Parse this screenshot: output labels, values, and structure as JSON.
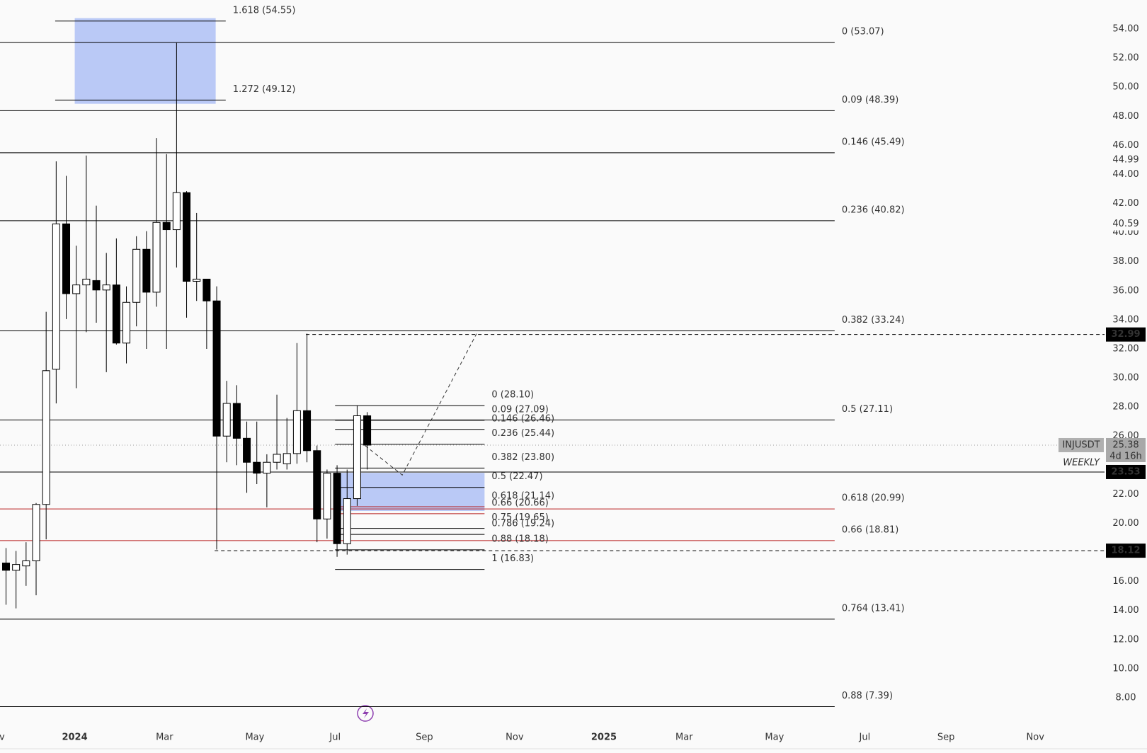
{
  "chart_data": {
    "type": "candlestick",
    "x": [
      0,
      1,
      2,
      3,
      4,
      5,
      6,
      7,
      8,
      9,
      10,
      11,
      12,
      13,
      14,
      15,
      16,
      17,
      18,
      19,
      20,
      21,
      22,
      23,
      24,
      25,
      26,
      27,
      28,
      29,
      30,
      31,
      32,
      33,
      34,
      35,
      36
    ],
    "open": [
      17.27,
      16.77,
      17.07,
      17.42,
      21.3,
      30.6,
      40.6,
      35.8,
      36.4,
      36.7,
      36.05,
      36.4,
      32.4,
      35.2,
      38.85,
      35.9,
      40.7,
      40.2,
      42.75,
      36.65,
      36.8,
      35.3,
      26.0,
      28.25,
      25.85,
      24.2,
      23.45,
      24.2,
      24.1,
      24.8,
      27.75,
      25.0,
      20.3,
      23.45,
      18.6,
      21.7,
      27.4
    ],
    "high": [
      18.3,
      18.1,
      18.7,
      21.4,
      34.55,
      44.9,
      43.9,
      39.1,
      45.3,
      41.85,
      38.6,
      39.6,
      36.3,
      39.75,
      40.1,
      46.5,
      45.4,
      53.05,
      42.85,
      41.35,
      36.8,
      36.3,
      29.8,
      29.5,
      27.0,
      27.0,
      24.75,
      28.85,
      27.25,
      32.4,
      33.05,
      25.35,
      23.7,
      24.0,
      23.7,
      28.1,
      27.65
    ],
    "low": [
      14.4,
      14.15,
      15.7,
      15.05,
      18.9,
      28.25,
      34.05,
      29.3,
      33.15,
      33.8,
      30.4,
      32.3,
      31.0,
      33.55,
      32.0,
      34.9,
      32.0,
      37.6,
      34.15,
      35.3,
      32.0,
      18.2,
      24.2,
      24.0,
      22.1,
      22.7,
      21.1,
      23.7,
      23.7,
      24.1,
      24.2,
      18.7,
      18.95,
      17.7,
      17.85,
      21.2,
      23.7
    ],
    "close": [
      16.77,
      17.17,
      17.42,
      21.3,
      30.5,
      40.6,
      35.8,
      36.4,
      36.8,
      36.05,
      36.4,
      32.4,
      35.2,
      38.85,
      35.9,
      40.7,
      40.2,
      42.75,
      36.65,
      36.8,
      35.3,
      26.0,
      28.25,
      25.85,
      24.2,
      23.45,
      24.2,
      24.75,
      24.8,
      27.75,
      25.0,
      20.3,
      23.45,
      18.6,
      21.7,
      27.4,
      25.38
    ],
    "up_color": "#ffffff",
    "down_color": "#000000",
    "xlim": [
      -0.6,
      109.5
    ],
    "xticks": [
      {
        "value": -0.4,
        "label": "v"
      },
      {
        "value": 6.85,
        "label": "2024"
      },
      {
        "value": 15.8,
        "label": "Mar"
      },
      {
        "value": 24.8,
        "label": "May"
      },
      {
        "value": 32.8,
        "label": "Jul"
      },
      {
        "value": 41.7,
        "label": "Sep"
      },
      {
        "value": 50.7,
        "label": "Nov"
      },
      {
        "value": 59.6,
        "label": "2025"
      },
      {
        "value": 67.6,
        "label": "Mar"
      },
      {
        "value": 76.6,
        "label": "May"
      },
      {
        "value": 85.6,
        "label": "Jul"
      },
      {
        "value": 93.7,
        "label": "Sep"
      },
      {
        "value": 102.6,
        "label": "Nov"
      }
    ],
    "ylim": [
      6.1,
      56
    ],
    "yticks": [
      {
        "value": 54,
        "label": "54.00"
      },
      {
        "value": 52,
        "label": "52.00"
      },
      {
        "value": 50,
        "label": "50.00"
      },
      {
        "value": 48,
        "label": "48.00"
      },
      {
        "value": 46,
        "label": "46.00"
      },
      {
        "value": 44,
        "label": "44.00"
      },
      {
        "value": 42,
        "label": "42.00"
      },
      {
        "value": 40,
        "label": "40.00"
      },
      {
        "value": 38,
        "label": "38.00"
      },
      {
        "value": 36,
        "label": "36.00"
      },
      {
        "value": 34,
        "label": "34.00"
      },
      {
        "value": 32,
        "label": "32.00"
      },
      {
        "value": 30,
        "label": "30.00"
      },
      {
        "value": 28,
        "label": "28.00"
      },
      {
        "value": 26,
        "label": "26.00"
      },
      {
        "value": 22,
        "label": "22.00"
      },
      {
        "value": 20,
        "label": "20.00"
      },
      {
        "value": 16,
        "label": "16.00"
      },
      {
        "value": 14,
        "label": "14.00"
      },
      {
        "value": 12,
        "label": "12.00"
      },
      {
        "value": 10,
        "label": "10.00"
      },
      {
        "value": 8,
        "label": "8.00"
      }
    ],
    "fib": {
      "x": [
        -0.6,
        82.6
      ],
      "levels": [
        {
          "label": "0 (53.07)",
          "value": 53.07,
          "color": "#000000"
        },
        {
          "label": "0.09 (48.39)",
          "value": 48.39,
          "color": "#000000"
        },
        {
          "label": "0.146 (45.49)",
          "value": 45.49,
          "color": "#000000"
        },
        {
          "label": "0.236 (40.82)",
          "value": 40.82,
          "color": "#000000"
        },
        {
          "label": "0.382 (33.24)",
          "value": 33.24,
          "color": "#000000"
        },
        {
          "label": "0.5 (27.11)",
          "value": 27.11,
          "color": "#000000"
        },
        {
          "label": "0.618 (20.99)",
          "value": 20.99,
          "color": "#b71c1c"
        },
        {
          "label": "0.66 (18.81)",
          "value": 18.81,
          "color": "#b71c1c"
        },
        {
          "label": "0.764 (13.41)",
          "value": 13.41,
          "color": "#000000"
        },
        {
          "label": "0.88 (7.39)",
          "value": 7.39,
          "color": "#000000"
        }
      ]
    },
    "extension": {
      "x": [
        4.9,
        21.9
      ],
      "zone": {
        "x": [
          6.85,
          20.9
        ],
        "y": [
          48.86,
          54.75
        ],
        "color": "#b3c3f5"
      },
      "levels": [
        {
          "label": "1.618 (54.55)",
          "value": 54.55,
          "color": "#000000"
        },
        {
          "label": "1.272 (49.12)",
          "value": 49.12,
          "color": "#000000"
        }
      ]
    },
    "small_fib": {
      "x": [
        32.8,
        47.7
      ],
      "zone": {
        "x": [
          32.8,
          47.7
        ],
        "y": [
          20.85,
          23.47
        ],
        "color": "#b3c3f5"
      },
      "levels": [
        {
          "label": "0 (28.10)",
          "value": 28.1,
          "color": "#000000"
        },
        {
          "label": "0.09 (27.09)",
          "value": 27.09,
          "color": "#000000"
        },
        {
          "label": "0.146 (26.46)",
          "value": 26.46,
          "color": "#000000"
        },
        {
          "label": "0.236 (25.44)",
          "value": 25.44,
          "color": "#000000"
        },
        {
          "label": "0.382 (23.80)",
          "value": 23.8,
          "color": "#000000"
        },
        {
          "label": "0.5 (22.47)",
          "value": 22.47,
          "color": "#000000"
        },
        {
          "label": "0.618 (21.14)",
          "value": 21.14,
          "color": "#b71c1c"
        },
        {
          "label": "0.66 (20.66)",
          "value": 20.66,
          "color": "#b71c1c"
        },
        {
          "label": "0.75 (19.65)",
          "value": 19.65,
          "color": "#000000"
        },
        {
          "label": "0.786 (19.24)",
          "value": 19.24,
          "color": "#000000"
        },
        {
          "label": "0.88 (18.18)",
          "value": 18.18,
          "color": "#000000"
        },
        {
          "label": "1 (16.83)",
          "value": 16.83,
          "color": "#000000"
        }
      ]
    },
    "price_lines": [
      {
        "value": 32.99,
        "label": "32.99",
        "style": "dashed",
        "x_start": 29.9
      },
      {
        "value": 23.53,
        "label": "23.53",
        "style": "solid",
        "x_start": -0.6
      },
      {
        "value": 18.12,
        "label": "18.12",
        "style": "dashed",
        "x_start": 20.8
      }
    ],
    "alert_labels": [
      {
        "value": 44.99,
        "label": "44.99"
      },
      {
        "value": 40.59,
        "label": "40.59"
      }
    ],
    "current": {
      "value": 25.38,
      "label": "25.38",
      "symbol": "INJUSDT",
      "countdown": "4d 16h",
      "interval": "WEEKLY"
    },
    "projection": {
      "x": [
        35.8,
        39.5,
        46.9
      ],
      "values": [
        25.34,
        23.32,
        33.04
      ]
    }
  }
}
